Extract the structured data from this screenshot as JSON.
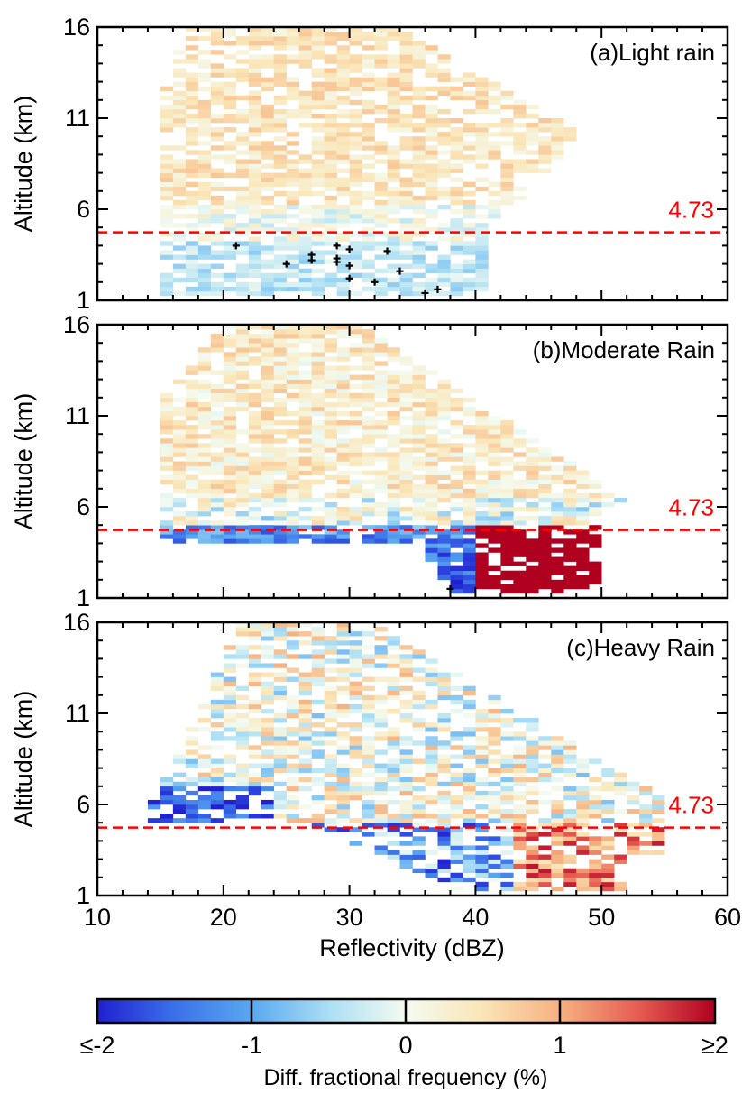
{
  "chart_data": {
    "type": "heatmap",
    "xlabel": "Reflectivity (dBZ)",
    "ylabel": "Altitude (km)",
    "xlim": [
      10,
      60
    ],
    "ylim": [
      1,
      16
    ],
    "x_ticks": [
      "10",
      "20",
      "30",
      "40",
      "50",
      "60"
    ],
    "y_ticks": [
      "1",
      "6",
      "11",
      "16"
    ],
    "bin_width_dBZ": 1,
    "bin_height_km": 0.25,
    "reference_line": {
      "value": 4.73,
      "label": "4.73",
      "color": "#ff0000",
      "style": "dashed"
    },
    "colorbar": {
      "label": "Diff. fractional frequency (%)",
      "range": [
        -2,
        2
      ],
      "tick_labels": [
        "≤-2",
        "-1",
        "0",
        "1",
        "≥2"
      ],
      "colors": [
        "#2020d0",
        "#5aa8f0",
        "#e8f8f4",
        "#f6cf98",
        "#b00020"
      ]
    },
    "panels": [
      {
        "title": "(a)Light rain",
        "significant_points": [
          {
            "x": 21,
            "y": 4.0
          },
          {
            "x": 25,
            "y": 3.0
          },
          {
            "x": 27,
            "y": 3.2
          },
          {
            "x": 27,
            "y": 3.5
          },
          {
            "x": 29,
            "y": 3.1
          },
          {
            "x": 29,
            "y": 3.3
          },
          {
            "x": 29,
            "y": 4.0
          },
          {
            "x": 30,
            "y": 2.9
          },
          {
            "x": 30,
            "y": 3.8
          },
          {
            "x": 30,
            "y": 2.2
          },
          {
            "x": 32,
            "y": 2.0
          },
          {
            "x": 33,
            "y": 3.7
          },
          {
            "x": 34,
            "y": 2.6
          },
          {
            "x": 36,
            "y": 1.4
          },
          {
            "x": 37,
            "y": 1.6
          }
        ]
      },
      {
        "title": "(b)Moderate Rain",
        "significant_points": [
          {
            "x": 38,
            "y": 1.5
          }
        ]
      },
      {
        "title": "(c)Heavy Rain",
        "significant_points": []
      }
    ]
  }
}
